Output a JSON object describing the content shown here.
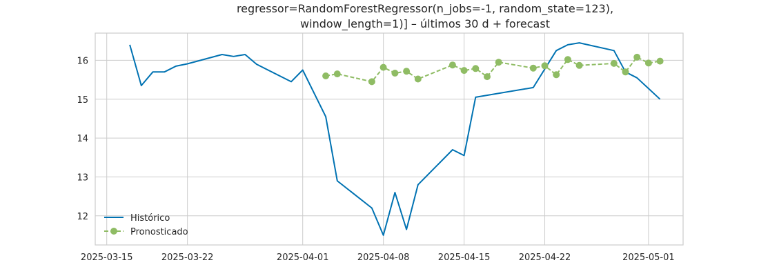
{
  "chart_data": {
    "type": "line",
    "title_lines": [
      "regressor=RandomForestRegressor(n_jobs=-1, random_state=123),",
      "window_length=1)] – últimos 30 d + forecast"
    ],
    "xlabel": "",
    "ylabel": "",
    "x_ticks": [
      "2025-03-15",
      "2025-03-22",
      "2025-04-01",
      "2025-04-08",
      "2025-04-15",
      "2025-04-22",
      "2025-05-01"
    ],
    "y_ticks": [
      12,
      13,
      14,
      15,
      16
    ],
    "xlim": [
      "2025-03-14",
      "2025-05-04"
    ],
    "ylim": [
      11.25,
      16.7
    ],
    "grid": true,
    "legend_position": "lower-left",
    "series": [
      {
        "name": "Histórico",
        "color": "#0072b2",
        "style": "solid",
        "marker": "none",
        "points": [
          [
            "2025-03-17",
            16.4
          ],
          [
            "2025-03-18",
            15.35
          ],
          [
            "2025-03-19",
            15.7
          ],
          [
            "2025-03-20",
            15.7
          ],
          [
            "2025-03-21",
            15.85
          ],
          [
            "2025-03-22",
            15.91
          ],
          [
            "2025-03-25",
            16.15
          ],
          [
            "2025-03-26",
            16.1
          ],
          [
            "2025-03-27",
            16.15
          ],
          [
            "2025-03-28",
            15.9
          ],
          [
            "2025-03-31",
            15.45
          ],
          [
            "2025-04-01",
            15.75
          ],
          [
            "2025-04-03",
            14.55
          ],
          [
            "2025-04-04",
            12.9
          ],
          [
            "2025-04-07",
            12.2
          ],
          [
            "2025-04-08",
            11.5
          ],
          [
            "2025-04-09",
            12.6
          ],
          [
            "2025-04-10",
            11.65
          ],
          [
            "2025-04-11",
            12.8
          ],
          [
            "2025-04-14",
            13.7
          ],
          [
            "2025-04-15",
            13.55
          ],
          [
            "2025-04-16",
            15.05
          ],
          [
            "2025-04-21",
            15.3
          ],
          [
            "2025-04-23",
            16.25
          ],
          [
            "2025-04-24",
            16.4
          ],
          [
            "2025-04-25",
            16.45
          ],
          [
            "2025-04-28",
            16.25
          ],
          [
            "2025-04-29",
            15.7
          ],
          [
            "2025-04-30",
            15.55
          ],
          [
            "2025-05-02",
            15.0
          ]
        ]
      },
      {
        "name": "Pronosticado",
        "color": "#8fbc64",
        "style": "dashed",
        "marker": "circle",
        "points": [
          [
            "2025-04-03",
            15.6
          ],
          [
            "2025-04-04",
            15.65
          ],
          [
            "2025-04-07",
            15.45
          ],
          [
            "2025-04-08",
            15.82
          ],
          [
            "2025-04-09",
            15.67
          ],
          [
            "2025-04-10",
            15.72
          ],
          [
            "2025-04-11",
            15.52
          ],
          [
            "2025-04-14",
            15.88
          ],
          [
            "2025-04-15",
            15.74
          ],
          [
            "2025-04-16",
            15.79
          ],
          [
            "2025-04-17",
            15.58
          ],
          [
            "2025-04-18",
            15.95
          ],
          [
            "2025-04-21",
            15.8
          ],
          [
            "2025-04-22",
            15.86
          ],
          [
            "2025-04-23",
            15.63
          ],
          [
            "2025-04-24",
            16.02
          ],
          [
            "2025-04-25",
            15.87
          ],
          [
            "2025-04-28",
            15.92
          ],
          [
            "2025-04-29",
            15.7
          ],
          [
            "2025-04-30",
            16.08
          ],
          [
            "2025-05-01",
            15.93
          ],
          [
            "2025-05-02",
            15.98
          ]
        ]
      }
    ]
  }
}
